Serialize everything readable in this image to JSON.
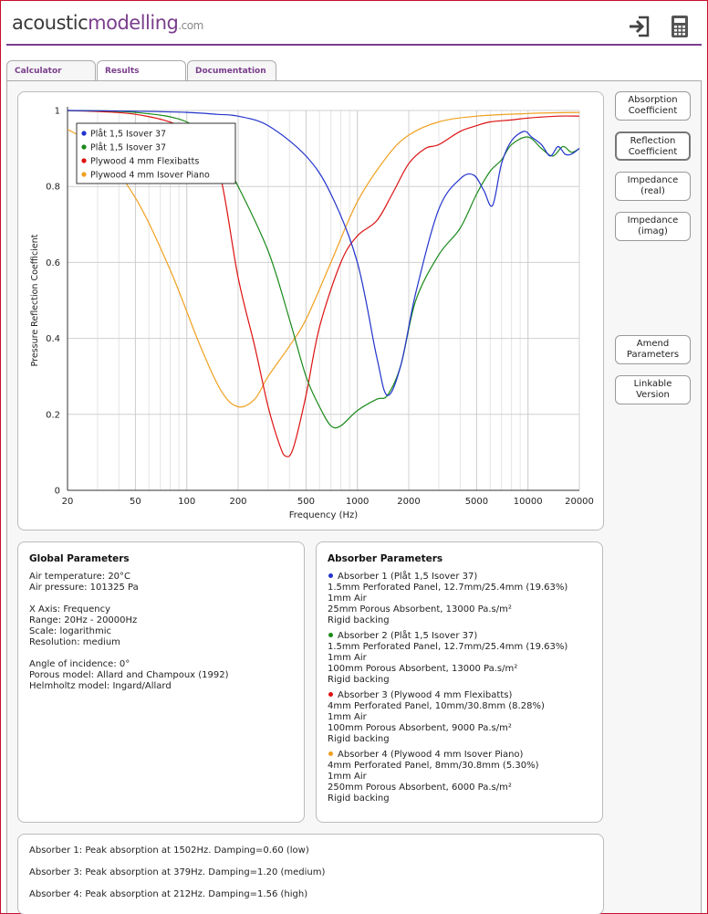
{
  "brand": {
    "part1": "acoustic",
    "part2": "modelling",
    "part3": ".com"
  },
  "header_icons": [
    "sign-in-icon",
    "calculator-icon"
  ],
  "tabs": [
    {
      "label": "Calculator",
      "active": false
    },
    {
      "label": "Results",
      "active": true
    },
    {
      "label": "Documentation",
      "active": false
    }
  ],
  "side_buttons": [
    {
      "label": "Absorption\nCoefficient",
      "active": false
    },
    {
      "label": "Reflection\nCoefficient",
      "active": true
    },
    {
      "label": "Impedance\n(real)",
      "active": false
    },
    {
      "label": "Impedance\n(imag)",
      "active": false
    },
    {
      "label": "Amend\nParameters",
      "active": false
    },
    {
      "label": "Linkable\nVersion",
      "active": false
    }
  ],
  "global_params": {
    "title": "Global Parameters",
    "lines1": [
      "Air temperature: 20°C",
      "Air pressure: 101325 Pa"
    ],
    "lines2": [
      "X Axis: Frequency",
      "Range: 20Hz - 20000Hz",
      "Scale: logarithmic",
      "Resolution: medium"
    ],
    "lines3": [
      "Angle of incidence: 0°",
      "Porous model: Allard and Champoux (1992)",
      "Helmholtz model: Ingard/Allard"
    ]
  },
  "absorber_params": {
    "title": "Absorber Parameters",
    "items": [
      {
        "color": "#2233cc",
        "title": "Absorber 1 (Plåt 1,5 Isover 37)",
        "lines": [
          "1.5mm Perforated Panel, 12.7mm/25.4mm (19.63%)",
          "1mm Air",
          "25mm Porous Absorbent, 13000 Pa.s/m²",
          "Rigid backing"
        ]
      },
      {
        "color": "#1a8a1a",
        "title": "Absorber 2 (Plåt 1,5 Isover 37)",
        "lines": [
          "1.5mm Perforated Panel, 12.7mm/25.4mm (19.63%)",
          "1mm Air",
          "100mm Porous Absorbent, 13000 Pa.s/m²",
          "Rigid backing"
        ]
      },
      {
        "color": "#dd1111",
        "title": "Absorber 3 (Plywood 4 mm Flexibatts)",
        "lines": [
          "4mm Perforated Panel, 10mm/30.8mm (8.28%)",
          "1mm Air",
          "100mm Porous Absorbent, 9000 Pa.s/m²",
          "Rigid backing"
        ]
      },
      {
        "color": "#f0a020",
        "title": "Absorber 4 (Plywood 4 mm Isover Piano)",
        "lines": [
          "4mm Perforated Panel, 8mm/30.8mm (5.30%)",
          "1mm Air",
          "250mm Porous Absorbent, 6000 Pa.s/m²",
          "Rigid backing"
        ]
      }
    ]
  },
  "summary": [
    "Absorber 1: Peak absorption at 1502Hz. Damping=0.60 (low)",
    "Absorber 3: Peak absorption at 379Hz. Damping=1.20 (medium)",
    "Absorber 4: Peak absorption at 212Hz. Damping=1.56 (high)"
  ],
  "chart_data": {
    "type": "line",
    "xlabel": "Frequency (Hz)",
    "ylabel": "Pressure Reflection Coefficient",
    "xscale": "log",
    "xlim": [
      20,
      20000
    ],
    "ylim": [
      0,
      1
    ],
    "xticks": [
      20,
      50,
      100,
      200,
      500,
      1000,
      2000,
      5000,
      10000,
      20000
    ],
    "xtick_labels": [
      "20",
      "50",
      "100",
      "200",
      "500",
      "1000",
      "2000",
      "5000",
      "10000",
      "20000"
    ],
    "yticks": [
      0,
      0.2,
      0.4,
      0.6,
      0.8,
      1
    ],
    "ytick_labels": [
      "0",
      "0.2",
      "0.4",
      "0.6",
      "0.8",
      "1"
    ],
    "grid": true,
    "legend_position": "top-left",
    "series": [
      {
        "name": "Plåt 1,5 Isover 37",
        "color": "#2233cc",
        "x": [
          20,
          50,
          100,
          150,
          200,
          300,
          500,
          700,
          1000,
          1300,
          1500,
          1800,
          2200,
          3000,
          4000,
          4800,
          5500,
          6200,
          7000,
          8000,
          9500,
          10500,
          12000,
          13500,
          15000,
          16500,
          18000,
          20000
        ],
        "y": [
          1.0,
          0.998,
          0.995,
          0.99,
          0.985,
          0.96,
          0.88,
          0.78,
          0.6,
          0.35,
          0.25,
          0.33,
          0.52,
          0.74,
          0.82,
          0.83,
          0.79,
          0.75,
          0.86,
          0.92,
          0.945,
          0.93,
          0.91,
          0.88,
          0.905,
          0.885,
          0.885,
          0.9
        ]
      },
      {
        "name": "Plåt 1,5 Isover 37",
        "color": "#1a8a1a",
        "x": [
          20,
          50,
          100,
          150,
          200,
          300,
          400,
          500,
          600,
          700,
          800,
          1000,
          1300,
          1500,
          1800,
          2200,
          3000,
          4000,
          5000,
          6000,
          7000,
          8000,
          10000,
          12000,
          14000,
          16000,
          18000,
          20000
        ],
        "y": [
          1.0,
          0.995,
          0.97,
          0.9,
          0.8,
          0.63,
          0.45,
          0.3,
          0.22,
          0.17,
          0.17,
          0.21,
          0.24,
          0.25,
          0.33,
          0.5,
          0.62,
          0.69,
          0.78,
          0.84,
          0.87,
          0.91,
          0.93,
          0.9,
          0.88,
          0.905,
          0.89,
          0.9
        ]
      },
      {
        "name": "Plywood 4 mm Flexibatts",
        "color": "#dd1111",
        "x": [
          20,
          50,
          100,
          150,
          200,
          250,
          300,
          350,
          380,
          420,
          500,
          600,
          800,
          1000,
          1300,
          1600,
          2000,
          2500,
          3000,
          4000,
          5000,
          6000,
          8000,
          10000,
          15000,
          20000
        ],
        "y": [
          1.0,
          0.99,
          0.95,
          0.86,
          0.56,
          0.38,
          0.22,
          0.12,
          0.09,
          0.11,
          0.25,
          0.43,
          0.6,
          0.67,
          0.71,
          0.78,
          0.86,
          0.9,
          0.91,
          0.945,
          0.96,
          0.97,
          0.975,
          0.98,
          0.985,
          0.985
        ]
      },
      {
        "name": "Plywood 4 mm Isover Piano",
        "color": "#f0a020",
        "x": [
          20,
          30,
          50,
          80,
          120,
          160,
          200,
          250,
          300,
          400,
          500,
          700,
          1000,
          1500,
          2000,
          3000,
          5000,
          10000,
          20000
        ],
        "y": [
          0.95,
          0.9,
          0.77,
          0.58,
          0.38,
          0.26,
          0.22,
          0.24,
          0.3,
          0.38,
          0.45,
          0.6,
          0.76,
          0.88,
          0.935,
          0.97,
          0.985,
          0.992,
          0.995
        ]
      }
    ]
  }
}
